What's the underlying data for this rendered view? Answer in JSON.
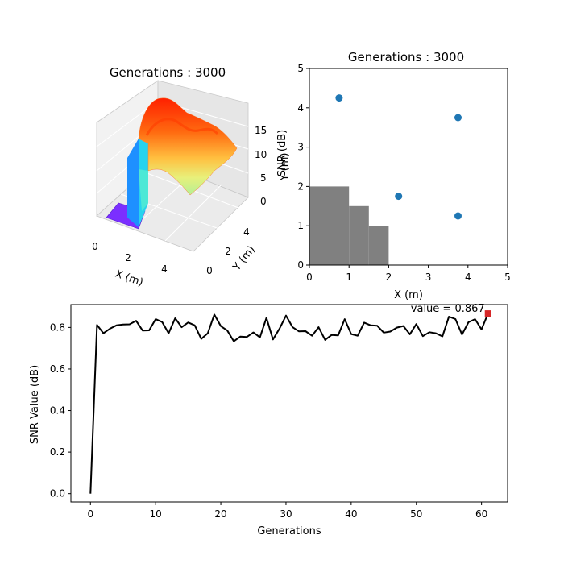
{
  "chart_data": [
    {
      "type": "surface",
      "title": "Generations : 3000",
      "xlabel": "X (m)",
      "ylabel": "Y (m)",
      "zlabel": "SNR (dB)",
      "x_ticks": [
        "0",
        "2",
        "4"
      ],
      "y_ticks": [
        "0",
        "2",
        "4"
      ],
      "z_ticks": [
        "0",
        "5",
        "10",
        "15"
      ],
      "xlim": [
        0,
        5
      ],
      "ylim": [
        0,
        5
      ],
      "zlim": [
        0,
        19
      ],
      "colormap": "rainbow"
    },
    {
      "type": "scatter",
      "title": "Generations : 3000",
      "xlabel": "X (m)",
      "ylabel": "Y (m)",
      "xlim": [
        0,
        5
      ],
      "ylim": [
        0,
        5
      ],
      "x_ticks": [
        "0",
        "1",
        "2",
        "3",
        "4",
        "5"
      ],
      "y_ticks": [
        "0",
        "1",
        "2",
        "3",
        "4",
        "5"
      ],
      "points": [
        {
          "x": 0.75,
          "y": 4.25
        },
        {
          "x": 3.75,
          "y": 3.75
        },
        {
          "x": 2.25,
          "y": 1.75
        },
        {
          "x": 3.75,
          "y": 1.25
        }
      ],
      "obstacle_steps": [
        {
          "x0": 0,
          "x1": 1.0,
          "y": 2.0
        },
        {
          "x0": 1.0,
          "x1": 1.5,
          "y": 1.5
        },
        {
          "x0": 1.5,
          "x1": 2.0,
          "y": 1.0
        }
      ],
      "point_color": "#1f77b4",
      "obstacle_color": "#808080"
    },
    {
      "type": "line",
      "xlabel": "Generations",
      "ylabel": "SNR Value (dB)",
      "xlim": [
        -3,
        64
      ],
      "ylim": [
        -0.04,
        0.91
      ],
      "x_ticks": [
        "0",
        "10",
        "20",
        "30",
        "40",
        "50",
        "60"
      ],
      "y_ticks": [
        "0.0",
        "0.2",
        "0.4",
        "0.6",
        "0.8"
      ],
      "annotation": "value = 0.867",
      "last_marker_color": "#d62728",
      "x": [
        0,
        1,
        2,
        3,
        4,
        5,
        6,
        7,
        8,
        9,
        10,
        11,
        12,
        13,
        14,
        15,
        16,
        17,
        18,
        19,
        20,
        21,
        22,
        23,
        24,
        25,
        26,
        27,
        28,
        29,
        30,
        31,
        32,
        33,
        34,
        35,
        36,
        37,
        38,
        39,
        40,
        41,
        42,
        43,
        44,
        45,
        46,
        47,
        48,
        49,
        50,
        51,
        52,
        53,
        54,
        55,
        56,
        57,
        58,
        59,
        60,
        61
      ],
      "values": [
        0.0,
        0.812,
        0.772,
        0.794,
        0.81,
        0.814,
        0.815,
        0.832,
        0.785,
        0.786,
        0.84,
        0.826,
        0.772,
        0.844,
        0.801,
        0.824,
        0.81,
        0.745,
        0.772,
        0.862,
        0.806,
        0.785,
        0.733,
        0.756,
        0.754,
        0.776,
        0.752,
        0.846,
        0.742,
        0.794,
        0.857,
        0.802,
        0.781,
        0.782,
        0.76,
        0.801,
        0.74,
        0.764,
        0.762,
        0.84,
        0.768,
        0.76,
        0.823,
        0.81,
        0.808,
        0.775,
        0.78,
        0.799,
        0.807,
        0.767,
        0.816,
        0.758,
        0.777,
        0.772,
        0.757,
        0.852,
        0.84,
        0.766,
        0.825,
        0.84,
        0.79,
        0.867
      ]
    }
  ]
}
